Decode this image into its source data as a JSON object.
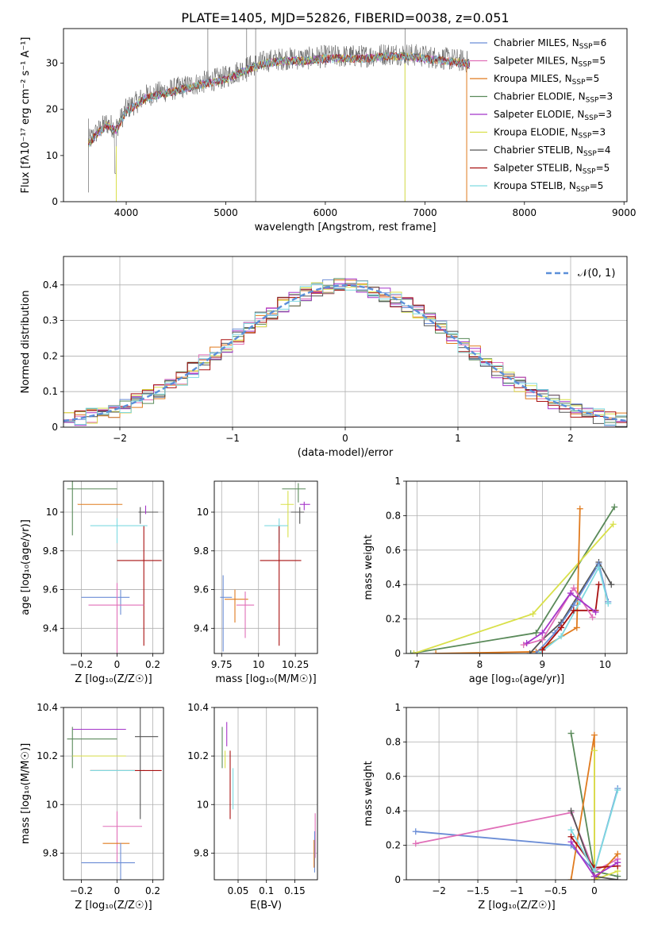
{
  "title": "PLATE=1405, MJD=52826, FIBERID=0038, z=0.051",
  "chart_data": [
    {
      "id": "spectrum",
      "type": "line",
      "xlabel": "wavelength [Angstrom, rest frame]",
      "ylabel": "Flux [fλ10⁻¹⁷ erg cm⁻² s⁻¹ A⁻¹]",
      "xlim": [
        3370,
        9030
      ],
      "ylim": [
        0,
        37.5
      ],
      "xticks": [
        4000,
        5000,
        6000,
        7000,
        8000,
        9000
      ],
      "yticks": [
        0,
        10,
        20,
        30
      ],
      "grid": false,
      "legend_position": "right",
      "legend": [
        {
          "label": "Chabrier MILES, N",
          "sub": "SSP",
          "val": "=6",
          "color": "#6b8dd6"
        },
        {
          "label": "Salpeter MILES, N",
          "sub": "SSP",
          "val": "=5",
          "color": "#e06fb8"
        },
        {
          "label": "Kroupa MILES, N",
          "sub": "SSP",
          "val": "=5",
          "color": "#e07b1f"
        },
        {
          "label": "Chabrier ELODIE, N",
          "sub": "SSP",
          "val": "=3",
          "color": "#5a8a5a"
        },
        {
          "label": "Salpeter ELODIE, N",
          "sub": "SSP",
          "val": "=3",
          "color": "#a535c9"
        },
        {
          "label": "Kroupa ELODIE, N",
          "sub": "SSP",
          "val": "=3",
          "color": "#d9e04a"
        },
        {
          "label": "Chabrier STELIB, N",
          "sub": "SSP",
          "val": "=4",
          "color": "#555555"
        },
        {
          "label": "Salpeter STELIB, N",
          "sub": "SSP",
          "val": "=5",
          "color": "#a81010"
        },
        {
          "label": "Kroupa STELIB, N",
          "sub": "SSP",
          "val": "=5",
          "color": "#7fd9e0"
        }
      ],
      "data_envelope": {
        "x": [
          3620,
          3700,
          3800,
          3900,
          4000,
          4200,
          4400,
          4600,
          4800,
          5000,
          5200,
          5400,
          5600,
          5800,
          6000,
          6200,
          6400,
          6600,
          6800,
          7000,
          7200,
          7400,
          7450
        ],
        "y": [
          13,
          15,
          17,
          16,
          20,
          23,
          24,
          25,
          26,
          27,
          29,
          30.5,
          31,
          31,
          31.5,
          31.5,
          31.5,
          32,
          32,
          31.5,
          31,
          30.5,
          30
        ]
      }
    },
    {
      "id": "residuals",
      "type": "histogram",
      "xlabel": "(data-model)/error",
      "ylabel": "Normed distribution",
      "xlim": [
        -2.5,
        2.5
      ],
      "ylim": [
        0,
        0.48
      ],
      "xticks": [
        -2,
        -1,
        0,
        1,
        2
      ],
      "yticks": [
        0.0,
        0.1,
        0.2,
        0.3,
        0.4
      ],
      "grid": true,
      "legend_position": "top-right",
      "reference_curve": {
        "label": "𝒩(0, 1)",
        "color": "#5b8fd9",
        "style": "dashed"
      },
      "bin_width": 0.1
    },
    {
      "id": "age_vs_Z",
      "type": "scatter-errorbar",
      "xlabel": "Z [log₁₀(Z/Z☉)]",
      "ylabel": "age  [log₁₀(age/yr)]",
      "xlim": [
        -0.3,
        0.26
      ],
      "ylim": [
        9.27,
        10.16
      ],
      "xticks": [
        -0.2,
        0.0,
        0.2
      ],
      "yticks": [
        9.4,
        9.6,
        9.8,
        10.0
      ],
      "grid": true,
      "points": [
        {
          "color": "#5a8a5a",
          "x": -0.25,
          "y": 10.12,
          "xerr": 0.03,
          "xerr2": 0.25,
          "yerr": 0.24
        },
        {
          "color": "#e07b1f",
          "x": -0.22,
          "y": 10.04,
          "xerr": 0.0,
          "xerr2": 0.25,
          "yerr": 0.0
        },
        {
          "color": "#555555",
          "x": 0.13,
          "y": 10.0,
          "xerr": 0.01,
          "xerr2": 0.1,
          "yerr": 0.06
        },
        {
          "color": "#7fd9e0",
          "x": 0.0,
          "y": 9.93,
          "xerr": 0.15,
          "xerr2": 0.17,
          "yerr": 0.09
        },
        {
          "color": "#a81010",
          "x": 0.15,
          "y": 9.75,
          "xerr": 0.15,
          "xerr2": 0.1,
          "yerr": 0.44
        },
        {
          "color": "#6b8dd6",
          "x": 0.02,
          "y": 9.56,
          "xerr": 0.22,
          "xerr2": 0.05,
          "yerr": 0.09
        },
        {
          "color": "#e06fb8",
          "x": 0.0,
          "y": 9.52,
          "xerr": 0.16,
          "xerr2": 0.15,
          "yerr": 0.28
        },
        {
          "color": "#a535c9",
          "x": 0.16,
          "y": 10.02,
          "xerr": 0.0,
          "xerr2": 0.0,
          "yerr": 0.03
        }
      ]
    },
    {
      "id": "age_vs_mass",
      "type": "scatter-errorbar",
      "xlabel": "mass [log₁₀(M/M☉)]",
      "ylabel": "",
      "xlim": [
        9.7,
        10.4
      ],
      "ylim": [
        9.27,
        10.16
      ],
      "xticks": [
        9.75,
        10.0,
        10.25
      ],
      "yticks": [
        9.4,
        9.6,
        9.8,
        10.0
      ],
      "grid": true,
      "points": [
        {
          "color": "#5a8a5a",
          "x": 10.27,
          "y": 10.12,
          "xerr": 0.11,
          "xerr2": 0.05,
          "yerr": 0.07
        },
        {
          "color": "#a535c9",
          "x": 10.31,
          "y": 10.04,
          "xerr": 0.03,
          "xerr2": 0.04,
          "yerr": 0.03
        },
        {
          "color": "#d9e04a",
          "x": 10.2,
          "y": 10.04,
          "xerr": 0.05,
          "xerr2": 0.04,
          "yerr": 0.17
        },
        {
          "color": "#555555",
          "x": 10.28,
          "y": 10.0,
          "xerr": 0.06,
          "xerr2": 0.03,
          "yerr": 0.06
        },
        {
          "color": "#7fd9e0",
          "x": 10.14,
          "y": 9.93,
          "xerr": 0.1,
          "xerr2": 0.06,
          "yerr": 0.09
        },
        {
          "color": "#a81010",
          "x": 10.14,
          "y": 9.75,
          "xerr": 0.13,
          "xerr2": 0.15,
          "yerr": 0.44
        },
        {
          "color": "#6b8dd6",
          "x": 9.76,
          "y": 9.56,
          "xerr": 0.02,
          "xerr2": 0.06,
          "yerr": 0.28
        },
        {
          "color": "#e07b1f",
          "x": 9.84,
          "y": 9.55,
          "xerr": 0.07,
          "xerr2": 0.09,
          "yerr": 0.12
        },
        {
          "color": "#e06fb8",
          "x": 9.91,
          "y": 9.52,
          "xerr": 0.06,
          "xerr2": 0.06,
          "yerr": 0.17
        }
      ]
    },
    {
      "id": "massweight_vs_age",
      "type": "line",
      "xlabel": "age  [log₁₀(age/yr)]",
      "ylabel": "mass weight",
      "xlim": [
        6.83,
        10.35
      ],
      "ylim": [
        0,
        1
      ],
      "xticks": [
        7,
        8,
        9,
        10
      ],
      "yticks": [
        0.0,
        0.2,
        0.4,
        0.6,
        0.8,
        1.0
      ],
      "grid": true,
      "series": [
        {
          "color": "#5a8a5a",
          "x": [
            6.9,
            8.9,
            10.15
          ],
          "y": [
            0.0,
            0.12,
            0.85
          ]
        },
        {
          "color": "#d9e04a",
          "x": [
            6.95,
            8.85,
            10.13
          ],
          "y": [
            0.0,
            0.23,
            0.75
          ]
        },
        {
          "color": "#e07b1f",
          "x": [
            7.3,
            8.9,
            9.55,
            9.6
          ],
          "y": [
            0.0,
            0.01,
            0.15,
            0.84
          ]
        },
        {
          "color": "#555555",
          "x": [
            8.8,
            9.0,
            9.3,
            9.9,
            10.1
          ],
          "y": [
            0.0,
            0.08,
            0.18,
            0.53,
            0.4
          ]
        },
        {
          "color": "#6b8dd6",
          "x": [
            8.9,
            9.2,
            9.5,
            9.9,
            10.05
          ],
          "y": [
            0.0,
            0.12,
            0.28,
            0.52,
            0.3
          ]
        },
        {
          "color": "#7fd9e0",
          "x": [
            8.95,
            9.3,
            9.6,
            9.9,
            10.05
          ],
          "y": [
            0.0,
            0.1,
            0.3,
            0.5,
            0.29
          ]
        },
        {
          "color": "#a81010",
          "x": [
            9.0,
            9.3,
            9.5,
            9.85,
            9.9
          ],
          "y": [
            0.02,
            0.15,
            0.25,
            0.25,
            0.4
          ]
        },
        {
          "color": "#e06fb8",
          "x": [
            8.7,
            9.0,
            9.5,
            9.8
          ],
          "y": [
            0.05,
            0.08,
            0.38,
            0.21
          ]
        },
        {
          "color": "#a535c9",
          "x": [
            8.75,
            9.0,
            9.45,
            9.85
          ],
          "y": [
            0.06,
            0.12,
            0.35,
            0.24
          ]
        }
      ]
    },
    {
      "id": "mass_vs_Z",
      "type": "scatter-errorbar",
      "xlabel": "Z [log₁₀(Z/Z☉)]",
      "ylabel": "mass [log₁₀(M/M☉)]",
      "xlim": [
        -0.3,
        0.26
      ],
      "ylim": [
        9.69,
        10.4
      ],
      "xticks": [
        -0.2,
        0.0,
        0.2
      ],
      "yticks": [
        9.8,
        10.0,
        10.2,
        10.4
      ],
      "grid": true,
      "points": [
        {
          "color": "#a535c9",
          "x": -0.2,
          "y": 10.31,
          "xerr": 0.05,
          "xerr2": 0.25,
          "yerr": 0.0
        },
        {
          "color": "#5a8a5a",
          "x": -0.25,
          "y": 10.27,
          "xerr": 0.03,
          "xerr2": 0.25,
          "yerr": 0.12
        },
        {
          "color": "#555555",
          "x": 0.13,
          "y": 10.28,
          "xerr": 0.03,
          "xerr2": 0.1,
          "yerr": 0.34
        },
        {
          "color": "#d9e04a",
          "x": -0.2,
          "y": 10.2,
          "xerr": 0.05,
          "xerr2": 0.25,
          "yerr": 0.0
        },
        {
          "color": "#a81010",
          "x": 0.15,
          "y": 10.14,
          "xerr": 0.3,
          "xerr2": 0.1,
          "yerr": 0.0
        },
        {
          "color": "#7fd9e0",
          "x": 0.0,
          "y": 10.14,
          "xerr": 0.15,
          "xerr2": 0.1,
          "yerr": 0.0
        },
        {
          "color": "#e06fb8",
          "x": 0.0,
          "y": 9.91,
          "xerr": 0.08,
          "xerr2": 0.14,
          "yerr": 0.15
        },
        {
          "color": "#e07b1f",
          "x": 0.0,
          "y": 9.84,
          "xerr": 0.08,
          "xerr2": 0.07,
          "yerr": 0.0
        },
        {
          "color": "#6b8dd6",
          "x": 0.02,
          "y": 9.76,
          "xerr": 0.22,
          "xerr2": 0.08,
          "yerr": 0.2
        }
      ]
    },
    {
      "id": "mass_vs_EBV",
      "type": "scatter-errorbar",
      "xlabel": "E(B-V)",
      "ylabel": "",
      "xlim": [
        0.008,
        0.19
      ],
      "ylim": [
        9.69,
        10.4
      ],
      "xticks": [
        0.05,
        0.1,
        0.15
      ],
      "yticks": [
        9.8,
        10.0,
        10.2,
        10.4
      ],
      "grid": true,
      "points": [
        {
          "color": "#5a8a5a",
          "x": 0.022,
          "y": 10.27,
          "xerr": 0.0,
          "xerr2": 0.0,
          "yerr": 0.12
        },
        {
          "color": "#a535c9",
          "x": 0.03,
          "y": 10.31,
          "xerr": 0.0,
          "xerr2": 0.0,
          "yerr": 0.07
        },
        {
          "color": "#d9e04a",
          "x": 0.027,
          "y": 10.2,
          "xerr": 0.0,
          "xerr2": 0.0,
          "yerr": 0.05
        },
        {
          "color": "#a81010",
          "x": 0.036,
          "y": 10.14,
          "xerr": 0.0,
          "xerr2": 0.0,
          "yerr": 0.2
        },
        {
          "color": "#7fd9e0",
          "x": 0.041,
          "y": 10.1,
          "xerr": 0.0,
          "xerr2": 0.0,
          "yerr": 0.12
        },
        {
          "color": "#e06fb8",
          "x": 0.186,
          "y": 9.91,
          "xerr": 0.0,
          "xerr2": 0.0,
          "yerr": 0.13
        },
        {
          "color": "#6b8dd6",
          "x": 0.185,
          "y": 9.84,
          "xerr": 0.0,
          "xerr2": 0.0,
          "yerr": 0.12
        },
        {
          "color": "#e07b1f",
          "x": 0.184,
          "y": 9.82,
          "xerr": 0.0,
          "xerr2": 0.0,
          "yerr": 0.08
        }
      ]
    },
    {
      "id": "massweight_vs_Z",
      "type": "line",
      "xlabel": "Z [log₁₀(Z/Z☉)]",
      "ylabel": "mass weight",
      "xlim": [
        -2.42,
        0.42
      ],
      "ylim": [
        0,
        1
      ],
      "xticks": [
        -2.0,
        -1.5,
        -1.0,
        -0.5,
        0.0
      ],
      "yticks": [
        0.0,
        0.2,
        0.4,
        0.6,
        0.8,
        1.0
      ],
      "grid": true,
      "series": [
        {
          "color": "#6b8dd6",
          "x": [
            -2.3,
            -0.3,
            0.0,
            0.3
          ],
          "y": [
            0.28,
            0.2,
            0.05,
            0.53
          ]
        },
        {
          "color": "#e06fb8",
          "x": [
            -2.3,
            -0.3,
            0.0,
            0.3
          ],
          "y": [
            0.21,
            0.39,
            0.05,
            0.12
          ]
        },
        {
          "color": "#5a8a5a",
          "x": [
            -0.3,
            0.0,
            0.3
          ],
          "y": [
            0.85,
            0.05,
            0.02
          ]
        },
        {
          "color": "#e07b1f",
          "x": [
            -0.3,
            0.0,
            0.0,
            0.3
          ],
          "y": [
            0.0,
            0.84,
            0.0,
            0.15
          ]
        },
        {
          "color": "#d9e04a",
          "x": [
            0.0,
            0.0,
            0.3
          ],
          "y": [
            0.75,
            0.0,
            0.05
          ]
        },
        {
          "color": "#555555",
          "x": [
            -0.3,
            0.0,
            0.3
          ],
          "y": [
            0.4,
            0.02,
            0.0
          ]
        },
        {
          "color": "#a81010",
          "x": [
            -0.3,
            0.0,
            0.3
          ],
          "y": [
            0.25,
            0.07,
            0.08
          ]
        },
        {
          "color": "#7fd9e0",
          "x": [
            -0.3,
            0.0,
            0.3
          ],
          "y": [
            0.29,
            0.05,
            0.52
          ]
        },
        {
          "color": "#a535c9",
          "x": [
            -0.3,
            0.0,
            0.3
          ],
          "y": [
            0.22,
            0.02,
            0.1
          ]
        }
      ]
    }
  ]
}
